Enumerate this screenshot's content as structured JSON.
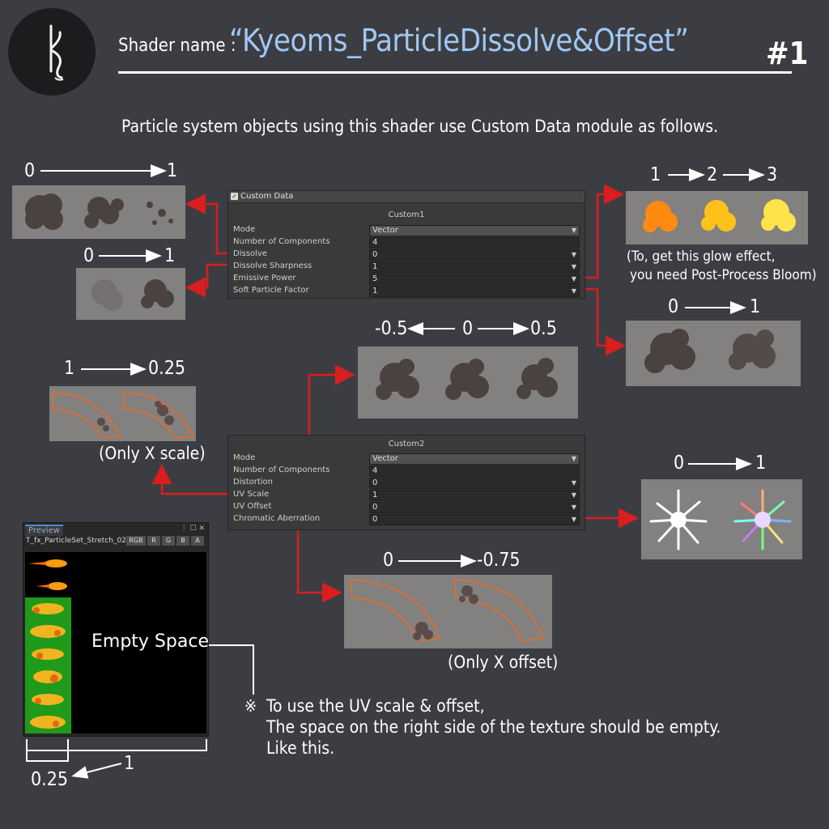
{
  "header": {
    "logo_glyph": "k",
    "label": "Shader name :",
    "shader_name": "“Kyeoms_ParticleDissolve&Offset”",
    "page_number": "#1"
  },
  "intro": "Particle system objects using this shader use Custom Data module as follows.",
  "custom1": {
    "section_title": "Custom Data",
    "subtitle": "Custom1",
    "rows": [
      {
        "label": "Mode",
        "value": "Vector"
      },
      {
        "label": "Number of Components",
        "value": "4"
      },
      {
        "label": "Dissolve",
        "value": "0"
      },
      {
        "label": "Dissolve Sharpness",
        "value": "1"
      },
      {
        "label": "Emissive Power",
        "value": "5"
      },
      {
        "label": "Soft Particle Factor",
        "value": "1"
      }
    ]
  },
  "custom2": {
    "subtitle": "Custom2",
    "rows": [
      {
        "label": "Mode",
        "value": "Vector"
      },
      {
        "label": "Number of Components",
        "value": "4"
      },
      {
        "label": "Distortion",
        "value": "0"
      },
      {
        "label": "UV Scale",
        "value": "1"
      },
      {
        "label": "UV Offset",
        "value": "0"
      },
      {
        "label": "Chromatic Aberration",
        "value": "0"
      }
    ]
  },
  "annotations": {
    "dissolve": {
      "from": "0",
      "to": "1"
    },
    "sharpness": {
      "from": "0",
      "to": "1"
    },
    "emissive": {
      "a": "1",
      "b": "2",
      "c": "3"
    },
    "emissive_note_1": "(To, get this glow effect,",
    "emissive_note_2": "you need Post-Process Bloom)",
    "soft": {
      "from": "0",
      "to": "1"
    },
    "distortion": {
      "a": "-0.5",
      "b": "0",
      "c": "0.5"
    },
    "uv_scale": {
      "from": "1",
      "to": "0.25",
      "note": "(Only X scale)"
    },
    "chromatic": {
      "from": "0",
      "to": "1"
    },
    "uv_offset": {
      "from": "0",
      "to": "-0.75",
      "note": "(Only X offset)"
    }
  },
  "preview": {
    "tab": "Preview",
    "texture_name": "T_fx_ParticleSet_Stretch_02",
    "buttons": [
      "RGB",
      "R",
      "G",
      "B",
      "A"
    ],
    "empty_label": "Empty Space",
    "width_full": "1",
    "width_part": "0.25"
  },
  "note": {
    "mark": "※",
    "line1": "To use the UV scale & offset,",
    "line2": "The space on the right side of the texture should be empty.",
    "line3": "Like this."
  },
  "colors": {
    "accent_name": "#9fc8f4",
    "arrow_red": "#d81e1e",
    "background": "#3c3d42"
  }
}
